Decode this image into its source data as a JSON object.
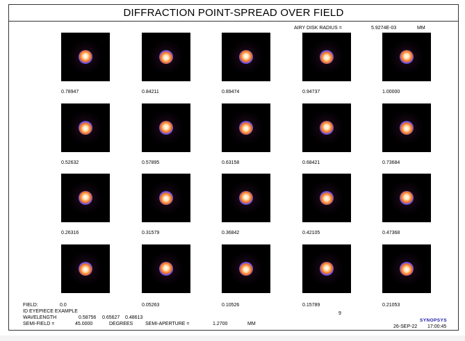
{
  "title": "DIFFRACTION POINT-SPREAD OVER FIELD",
  "airy": {
    "label": "AIRY DISK RADIUS =",
    "value": "5.9274E-03",
    "unit": "MM"
  },
  "rows": [
    {
      "fields": [
        "0.78947",
        "0.84211",
        "0.89474",
        "0.94737",
        "1.00000"
      ]
    },
    {
      "fields": [
        "0.52632",
        "0.57895",
        "0.63158",
        "0.68421",
        "0.73684"
      ]
    },
    {
      "fields": [
        "0.26316",
        "0.31579",
        "0.36842",
        "0.42105",
        "0.47368"
      ]
    },
    {
      "fields": [
        "0.0",
        "0.05263",
        "0.10526",
        "0.15789",
        "0.21053"
      ]
    }
  ],
  "footer": {
    "field_label": "FIELD:",
    "lens_name": "ID EYEPIECE EXAMPLE",
    "wavelength_label": "WAVELENGTH",
    "wavelengths": [
      "0.58756",
      "0.65627",
      "0.48613"
    ],
    "semi_field_label": "SEMI-FIELD =",
    "semi_field_value": "45.0000",
    "semi_field_unit": "DEGREES",
    "semi_aperture_label": "SEMI-APERTURE =",
    "semi_aperture_value": "1.2700",
    "semi_aperture_unit": "MM",
    "marker": "9",
    "brand": "SYNOPSYS",
    "date": "26-SEP-22",
    "time": "17:00:45"
  },
  "colors": {
    "tile_background": "#000000",
    "psf_core": "#ffffff",
    "psf_red": "#ff7a1a",
    "psf_blue": "#5a4dff",
    "brand_color": "#1a1aa6"
  }
}
